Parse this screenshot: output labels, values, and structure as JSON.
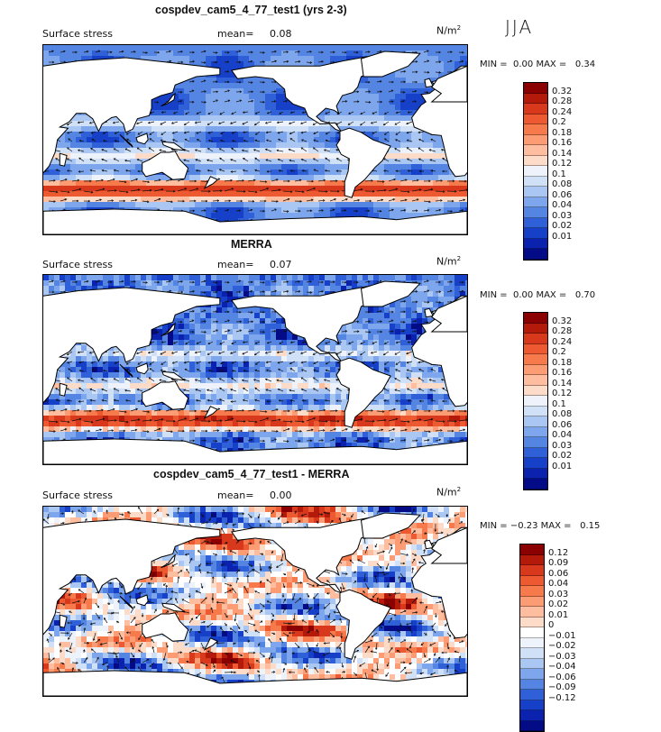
{
  "season": "JJA",
  "panels": [
    {
      "title": "cospdev_cam5_4_77_test1 (yrs 2-3)",
      "variable": "Surface stress",
      "mean_label": "mean=",
      "mean_value": "0.08",
      "units_base": "N/m",
      "units_exp": "2",
      "min_label": "MIN =",
      "min_value": "0.00",
      "max_label": "MAX =",
      "max_value": "0.34",
      "kind": "model",
      "colorbar_colors": [
        "#8b0000",
        "#b41a0a",
        "#d8381c",
        "#ed5a31",
        "#f77a4d",
        "#fb9c75",
        "#fdbd9e",
        "#fcdcc8",
        "#eef3fb",
        "#cfe0f7",
        "#a9c7f2",
        "#7ea6ec",
        "#5585e3",
        "#2f60d8",
        "#1740c8",
        "#0a22ad",
        "#030c86"
      ],
      "colorbar_labels": [
        "0.32",
        "0.28",
        "0.24",
        "0.2",
        "0.18",
        "0.16",
        "0.14",
        "0.12",
        "0.1",
        "0.08",
        "0.06",
        "0.04",
        "0.03",
        "0.02",
        "0.01"
      ]
    },
    {
      "title": "MERRA",
      "variable": "Surface stress",
      "mean_label": "mean=",
      "mean_value": "0.07",
      "units_base": "N/m",
      "units_exp": "2",
      "min_label": "MIN =",
      "min_value": "0.00",
      "max_label": "MAX =",
      "max_value": "0.70",
      "kind": "obs",
      "colorbar_colors": [
        "#8b0000",
        "#b41a0a",
        "#d8381c",
        "#ed5a31",
        "#f77a4d",
        "#fb9c75",
        "#fdbd9e",
        "#fcdcc8",
        "#eef3fb",
        "#cfe0f7",
        "#a9c7f2",
        "#7ea6ec",
        "#5585e3",
        "#2f60d8",
        "#1740c8",
        "#0a22ad",
        "#030c86"
      ],
      "colorbar_labels": [
        "0.32",
        "0.28",
        "0.24",
        "0.2",
        "0.18",
        "0.16",
        "0.14",
        "0.12",
        "0.1",
        "0.08",
        "0.06",
        "0.04",
        "0.03",
        "0.02",
        "0.01"
      ]
    },
    {
      "title": "cospdev_cam5_4_77_test1 - MERRA",
      "variable": "Surface stress",
      "mean_label": "mean=",
      "mean_value": "0.00",
      "units_base": "N/m",
      "units_exp": "2",
      "min_label": "MIN =",
      "min_value": "−0.23",
      "max_label": "MAX =",
      "max_value": "0.15",
      "kind": "diff",
      "colorbar_colors": [
        "#8b0000",
        "#b41a0a",
        "#d8381c",
        "#ed5a31",
        "#f77a4d",
        "#fb9c75",
        "#fdbd9e",
        "#fcdcc8",
        "#ffffff",
        "#eef3fb",
        "#cfe0f7",
        "#a9c7f2",
        "#7ea6ec",
        "#5585e3",
        "#2f60d8",
        "#1740c8",
        "#0a22ad",
        "#030c86"
      ],
      "colorbar_labels": [
        "0.12",
        "0.09",
        "0.06",
        "0.04",
        "0.03",
        "0.02",
        "0.01",
        "0",
        "−0.01",
        "−0.02",
        "−0.03",
        "−0.04",
        "−0.06",
        "−0.09",
        "−0.12"
      ]
    }
  ]
}
